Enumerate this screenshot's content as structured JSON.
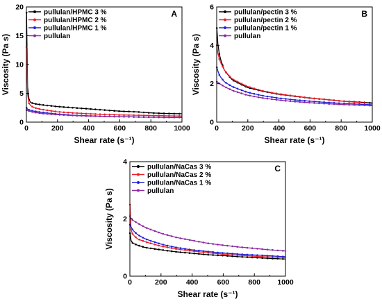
{
  "chart_data": [
    {
      "type": "line",
      "panel": "A",
      "xlabel": "Shear rate (s⁻¹)",
      "ylabel": "Viscosity (Pa s)",
      "xlim": [
        0,
        1000
      ],
      "ylim": [
        0,
        20
      ],
      "xticks": [
        0,
        200,
        400,
        600,
        800,
        1000
      ],
      "yticks": [
        0,
        5,
        10,
        15,
        20
      ],
      "legend_position": "top-left",
      "series": [
        {
          "name": "pullulan/HPMC 3 %",
          "color": "#000000",
          "x": [
            1,
            5,
            10,
            20,
            50,
            100,
            200,
            300,
            400,
            500,
            600,
            700,
            800,
            900,
            1000
          ],
          "y": [
            19.0,
            8.0,
            5.0,
            3.5,
            3.2,
            3.0,
            2.7,
            2.5,
            2.3,
            2.1,
            1.9,
            1.8,
            1.6,
            1.5,
            1.45
          ]
        },
        {
          "name": "pullulan/HPMC 2 %",
          "color": "#e8202a",
          "x": [
            1,
            5,
            10,
            20,
            50,
            100,
            200,
            300,
            400,
            500,
            600,
            700,
            800,
            900,
            1000
          ],
          "y": [
            13.0,
            6.0,
            4.0,
            3.0,
            2.5,
            2.2,
            1.8,
            1.6,
            1.45,
            1.35,
            1.25,
            1.2,
            1.15,
            1.1,
            1.05
          ]
        },
        {
          "name": "pullulan/HPMC 1 %",
          "color": "#2323d8",
          "x": [
            1,
            5,
            10,
            20,
            50,
            100,
            200,
            300,
            400,
            500,
            600,
            700,
            800,
            900,
            1000
          ],
          "y": [
            2.5,
            2.3,
            2.2,
            2.1,
            1.9,
            1.7,
            1.4,
            1.2,
            1.1,
            1.0,
            0.95,
            0.9,
            0.85,
            0.82,
            0.8
          ]
        },
        {
          "name": "pullulan",
          "color": "#8c2aa3",
          "x": [
            1,
            5,
            10,
            20,
            50,
            100,
            200,
            300,
            400,
            500,
            600,
            700,
            800,
            900,
            1000
          ],
          "y": [
            2.1,
            2.0,
            2.0,
            1.9,
            1.7,
            1.5,
            1.3,
            1.15,
            1.05,
            1.0,
            0.95,
            0.9,
            0.88,
            0.85,
            0.82
          ]
        }
      ]
    },
    {
      "type": "line",
      "panel": "B",
      "xlabel": "Shear rate (s⁻¹)",
      "ylabel": "Viscosity (Pa s)",
      "xlim": [
        0,
        1000
      ],
      "ylim": [
        0,
        6
      ],
      "xticks": [
        0,
        200,
        400,
        600,
        800,
        1000
      ],
      "yticks": [
        0,
        2,
        4,
        6
      ],
      "legend_position": "top-left",
      "series": [
        {
          "name": "pullulan/pectin 3 %",
          "color": "#000000",
          "x": [
            1,
            5,
            10,
            20,
            50,
            100,
            200,
            300,
            400,
            500,
            600,
            700,
            800,
            900,
            1000
          ],
          "y": [
            4.9,
            4.3,
            3.9,
            3.4,
            2.7,
            2.2,
            1.8,
            1.6,
            1.45,
            1.35,
            1.25,
            1.18,
            1.1,
            1.05,
            1.0
          ]
        },
        {
          "name": "pullulan/pectin 2 %",
          "color": "#e8202a",
          "x": [
            1,
            5,
            10,
            20,
            50,
            100,
            200,
            300,
            400,
            500,
            600,
            700,
            800,
            900,
            1000
          ],
          "y": [
            4.0,
            3.7,
            3.5,
            3.2,
            2.7,
            2.25,
            1.85,
            1.62,
            1.47,
            1.36,
            1.26,
            1.18,
            1.1,
            1.03,
            0.97
          ]
        },
        {
          "name": "pullulan/pectin 1 %",
          "color": "#2323d8",
          "x": [
            1,
            5,
            10,
            20,
            50,
            100,
            200,
            300,
            400,
            500,
            600,
            700,
            800,
            900,
            1000
          ],
          "y": [
            2.85,
            2.75,
            2.6,
            2.4,
            2.1,
            1.85,
            1.55,
            1.37,
            1.25,
            1.16,
            1.09,
            1.03,
            0.98,
            0.94,
            0.9
          ]
        },
        {
          "name": "pullulan",
          "color": "#8c2aa3",
          "x": [
            1,
            5,
            10,
            20,
            50,
            100,
            200,
            300,
            400,
            500,
            600,
            700,
            800,
            900,
            1000
          ],
          "y": [
            2.1,
            2.1,
            2.05,
            2.0,
            1.85,
            1.65,
            1.4,
            1.25,
            1.15,
            1.07,
            1.01,
            0.96,
            0.92,
            0.89,
            0.86
          ]
        }
      ]
    },
    {
      "type": "line",
      "panel": "C",
      "xlabel": "Shear rate (s⁻¹)",
      "ylabel": "Viscosity (Pa s)",
      "xlim": [
        0,
        1000
      ],
      "ylim": [
        0,
        4
      ],
      "xticks": [
        0,
        200,
        400,
        600,
        800,
        1000
      ],
      "yticks": [
        0,
        2,
        4
      ],
      "legend_position": "top-left",
      "series": [
        {
          "name": "pullulan/NaCas 3 %",
          "color": "#000000",
          "x": [
            1,
            5,
            10,
            20,
            50,
            100,
            200,
            300,
            400,
            500,
            600,
            700,
            800,
            900,
            1000
          ],
          "y": [
            1.5,
            1.3,
            1.2,
            1.15,
            1.08,
            1.0,
            0.92,
            0.85,
            0.8,
            0.75,
            0.72,
            0.68,
            0.65,
            0.62,
            0.6
          ]
        },
        {
          "name": "pullulan/NaCas 2 %",
          "color": "#e8202a",
          "x": [
            1,
            5,
            10,
            20,
            50,
            100,
            200,
            300,
            400,
            500,
            600,
            700,
            800,
            900,
            1000
          ],
          "y": [
            2.5,
            1.7,
            1.55,
            1.45,
            1.3,
            1.2,
            1.05,
            0.95,
            0.88,
            0.82,
            0.77,
            0.73,
            0.7,
            0.67,
            0.65
          ]
        },
        {
          "name": "pullulan/NaCas 1 %",
          "color": "#2323d8",
          "x": [
            1,
            5,
            10,
            20,
            50,
            100,
            200,
            300,
            400,
            500,
            600,
            700,
            800,
            900,
            1000
          ],
          "y": [
            1.8,
            1.75,
            1.7,
            1.6,
            1.45,
            1.3,
            1.12,
            1.0,
            0.92,
            0.86,
            0.81,
            0.77,
            0.74,
            0.71,
            0.68
          ]
        },
        {
          "name": "pullulan",
          "color": "#8c2aa3",
          "x": [
            1,
            5,
            10,
            20,
            50,
            100,
            200,
            300,
            400,
            500,
            600,
            700,
            800,
            900,
            1000
          ],
          "y": [
            2.1,
            2.05,
            2.0,
            1.95,
            1.85,
            1.7,
            1.5,
            1.35,
            1.25,
            1.15,
            1.08,
            1.02,
            0.97,
            0.92,
            0.88
          ]
        }
      ]
    }
  ]
}
